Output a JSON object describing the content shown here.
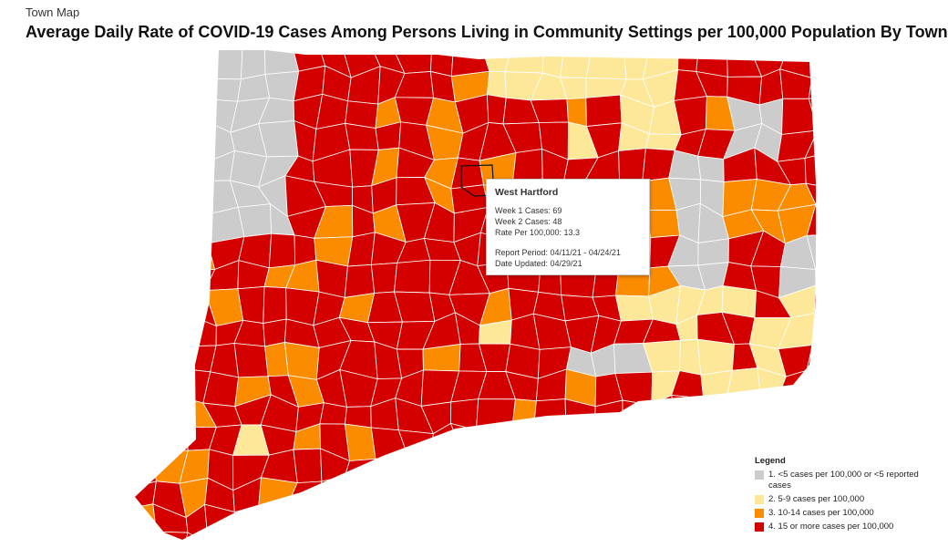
{
  "header": {
    "kicker": "Town Map",
    "title": "Average Daily Rate of COVID-19 Cases Among Persons Living in Community Settings per 100,000 Population By Town"
  },
  "tooltip": {
    "town": "West Hartford",
    "lines": [
      "Week 1 Cases: 69",
      "Week 2 Cases: 48",
      "Rate Per 100,000: 13.3"
    ],
    "period_lines": [
      "Report Period: 04/11/21 - 04/24/21",
      "Date Updated: 04/29/21"
    ]
  },
  "legend": {
    "title": "Legend",
    "items": [
      {
        "label": "1. <5 cases per 100,000 or <5 reported cases",
        "color": "#cccccc"
      },
      {
        "label": "2. 5-9 cases per 100,000",
        "color": "#fde89a"
      },
      {
        "label": "3. 10-14 cases per 100,000",
        "color": "#fb8c00"
      },
      {
        "label": "4. 15 or more cases per 100,000",
        "color": "#d40000"
      }
    ]
  }
}
